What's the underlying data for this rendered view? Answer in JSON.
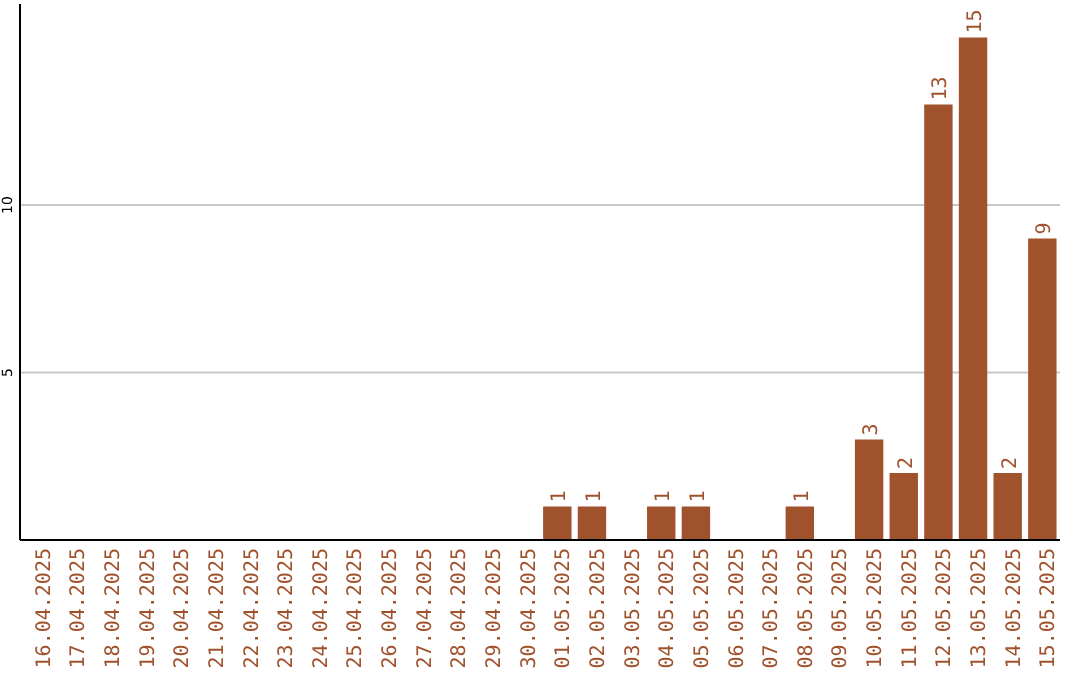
{
  "chart_data": {
    "type": "bar",
    "categories": [
      "16.04.2025",
      "17.04.2025",
      "18.04.2025",
      "19.04.2025",
      "20.04.2025",
      "21.04.2025",
      "22.04.2025",
      "23.04.2025",
      "24.04.2025",
      "25.04.2025",
      "26.04.2025",
      "27.04.2025",
      "28.04.2025",
      "29.04.2025",
      "30.04.2025",
      "01.05.2025",
      "02.05.2025",
      "03.05.2025",
      "04.05.2025",
      "05.05.2025",
      "06.05.2025",
      "07.05.2025",
      "08.05.2025",
      "09.05.2025",
      "10.05.2025",
      "11.05.2025",
      "12.05.2025",
      "13.05.2025",
      "14.05.2025",
      "15.05.2025"
    ],
    "values": [
      0,
      0,
      0,
      0,
      0,
      0,
      0,
      0,
      0,
      0,
      0,
      0,
      0,
      0,
      0,
      1,
      1,
      0,
      1,
      1,
      0,
      0,
      1,
      0,
      3,
      2,
      13,
      15,
      2,
      9
    ],
    "value_labels": [
      null,
      null,
      null,
      null,
      null,
      null,
      null,
      null,
      null,
      null,
      null,
      null,
      null,
      null,
      null,
      "1",
      "1",
      null,
      "1",
      "1",
      null,
      null,
      "1",
      null,
      "3",
      "2",
      "13",
      "15",
      "2",
      "9"
    ],
    "color": "#a0522d",
    "ylim": [
      0,
      16
    ],
    "yticks": [
      5,
      10
    ],
    "grid": "y"
  }
}
